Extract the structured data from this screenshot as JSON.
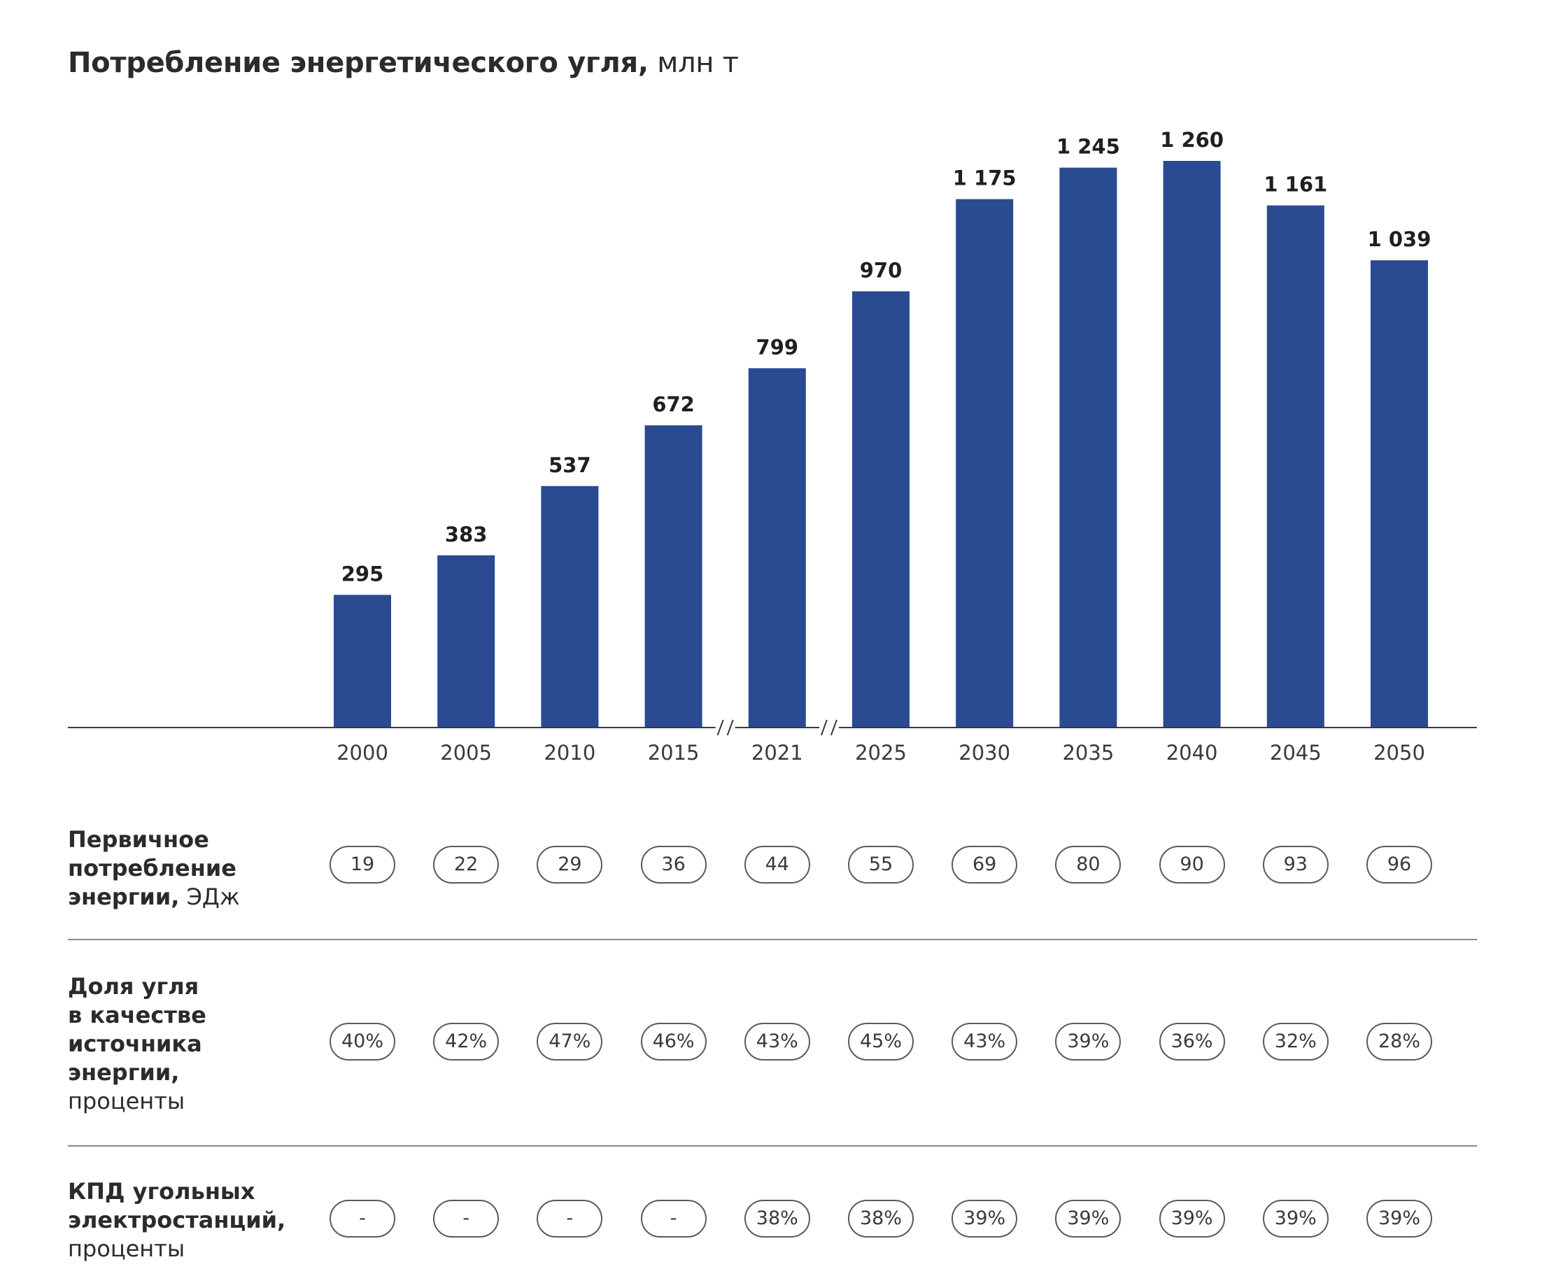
{
  "title": {
    "main": "Потребление энергетического угля,",
    "unit": "млн т"
  },
  "chart_data": {
    "type": "bar",
    "categories": [
      "2000",
      "2005",
      "2010",
      "2015",
      "2021",
      "2025",
      "2030",
      "2035",
      "2040",
      "2045",
      "2050"
    ],
    "values": [
      295,
      383,
      537,
      672,
      799,
      970,
      1175,
      1245,
      1260,
      1161,
      1039
    ],
    "value_labels": [
      "295",
      "383",
      "537",
      "672",
      "799",
      "970",
      "1 175",
      "1 245",
      "1 260",
      "1 161",
      "1 039"
    ],
    "axis_breaks_after": [
      "2015",
      "2021"
    ],
    "title": "Потребление энергетического угля, млн т",
    "ylim": [
      0,
      1260
    ],
    "color": "#2a4a92"
  },
  "rows": [
    {
      "label_bold": [
        "Первичное",
        "потребление",
        "энергии,"
      ],
      "label_unit": "ЭДж",
      "values": [
        "19",
        "22",
        "29",
        "36",
        "44",
        "55",
        "69",
        "80",
        "90",
        "93",
        "96"
      ]
    },
    {
      "label_bold": [
        "Доля угля",
        "в качестве",
        "источника",
        "энергии,"
      ],
      "label_unit": "проценты",
      "values": [
        "40%",
        "42%",
        "47%",
        "46%",
        "43%",
        "45%",
        "43%",
        "39%",
        "36%",
        "32%",
        "28%"
      ]
    },
    {
      "label_bold": [
        "КПД угольных",
        "электростанций,"
      ],
      "label_unit": "проценты",
      "values": [
        "-",
        "-",
        "-",
        "-",
        "38%",
        "38%",
        "39%",
        "39%",
        "39%",
        "39%",
        "39%"
      ]
    }
  ]
}
